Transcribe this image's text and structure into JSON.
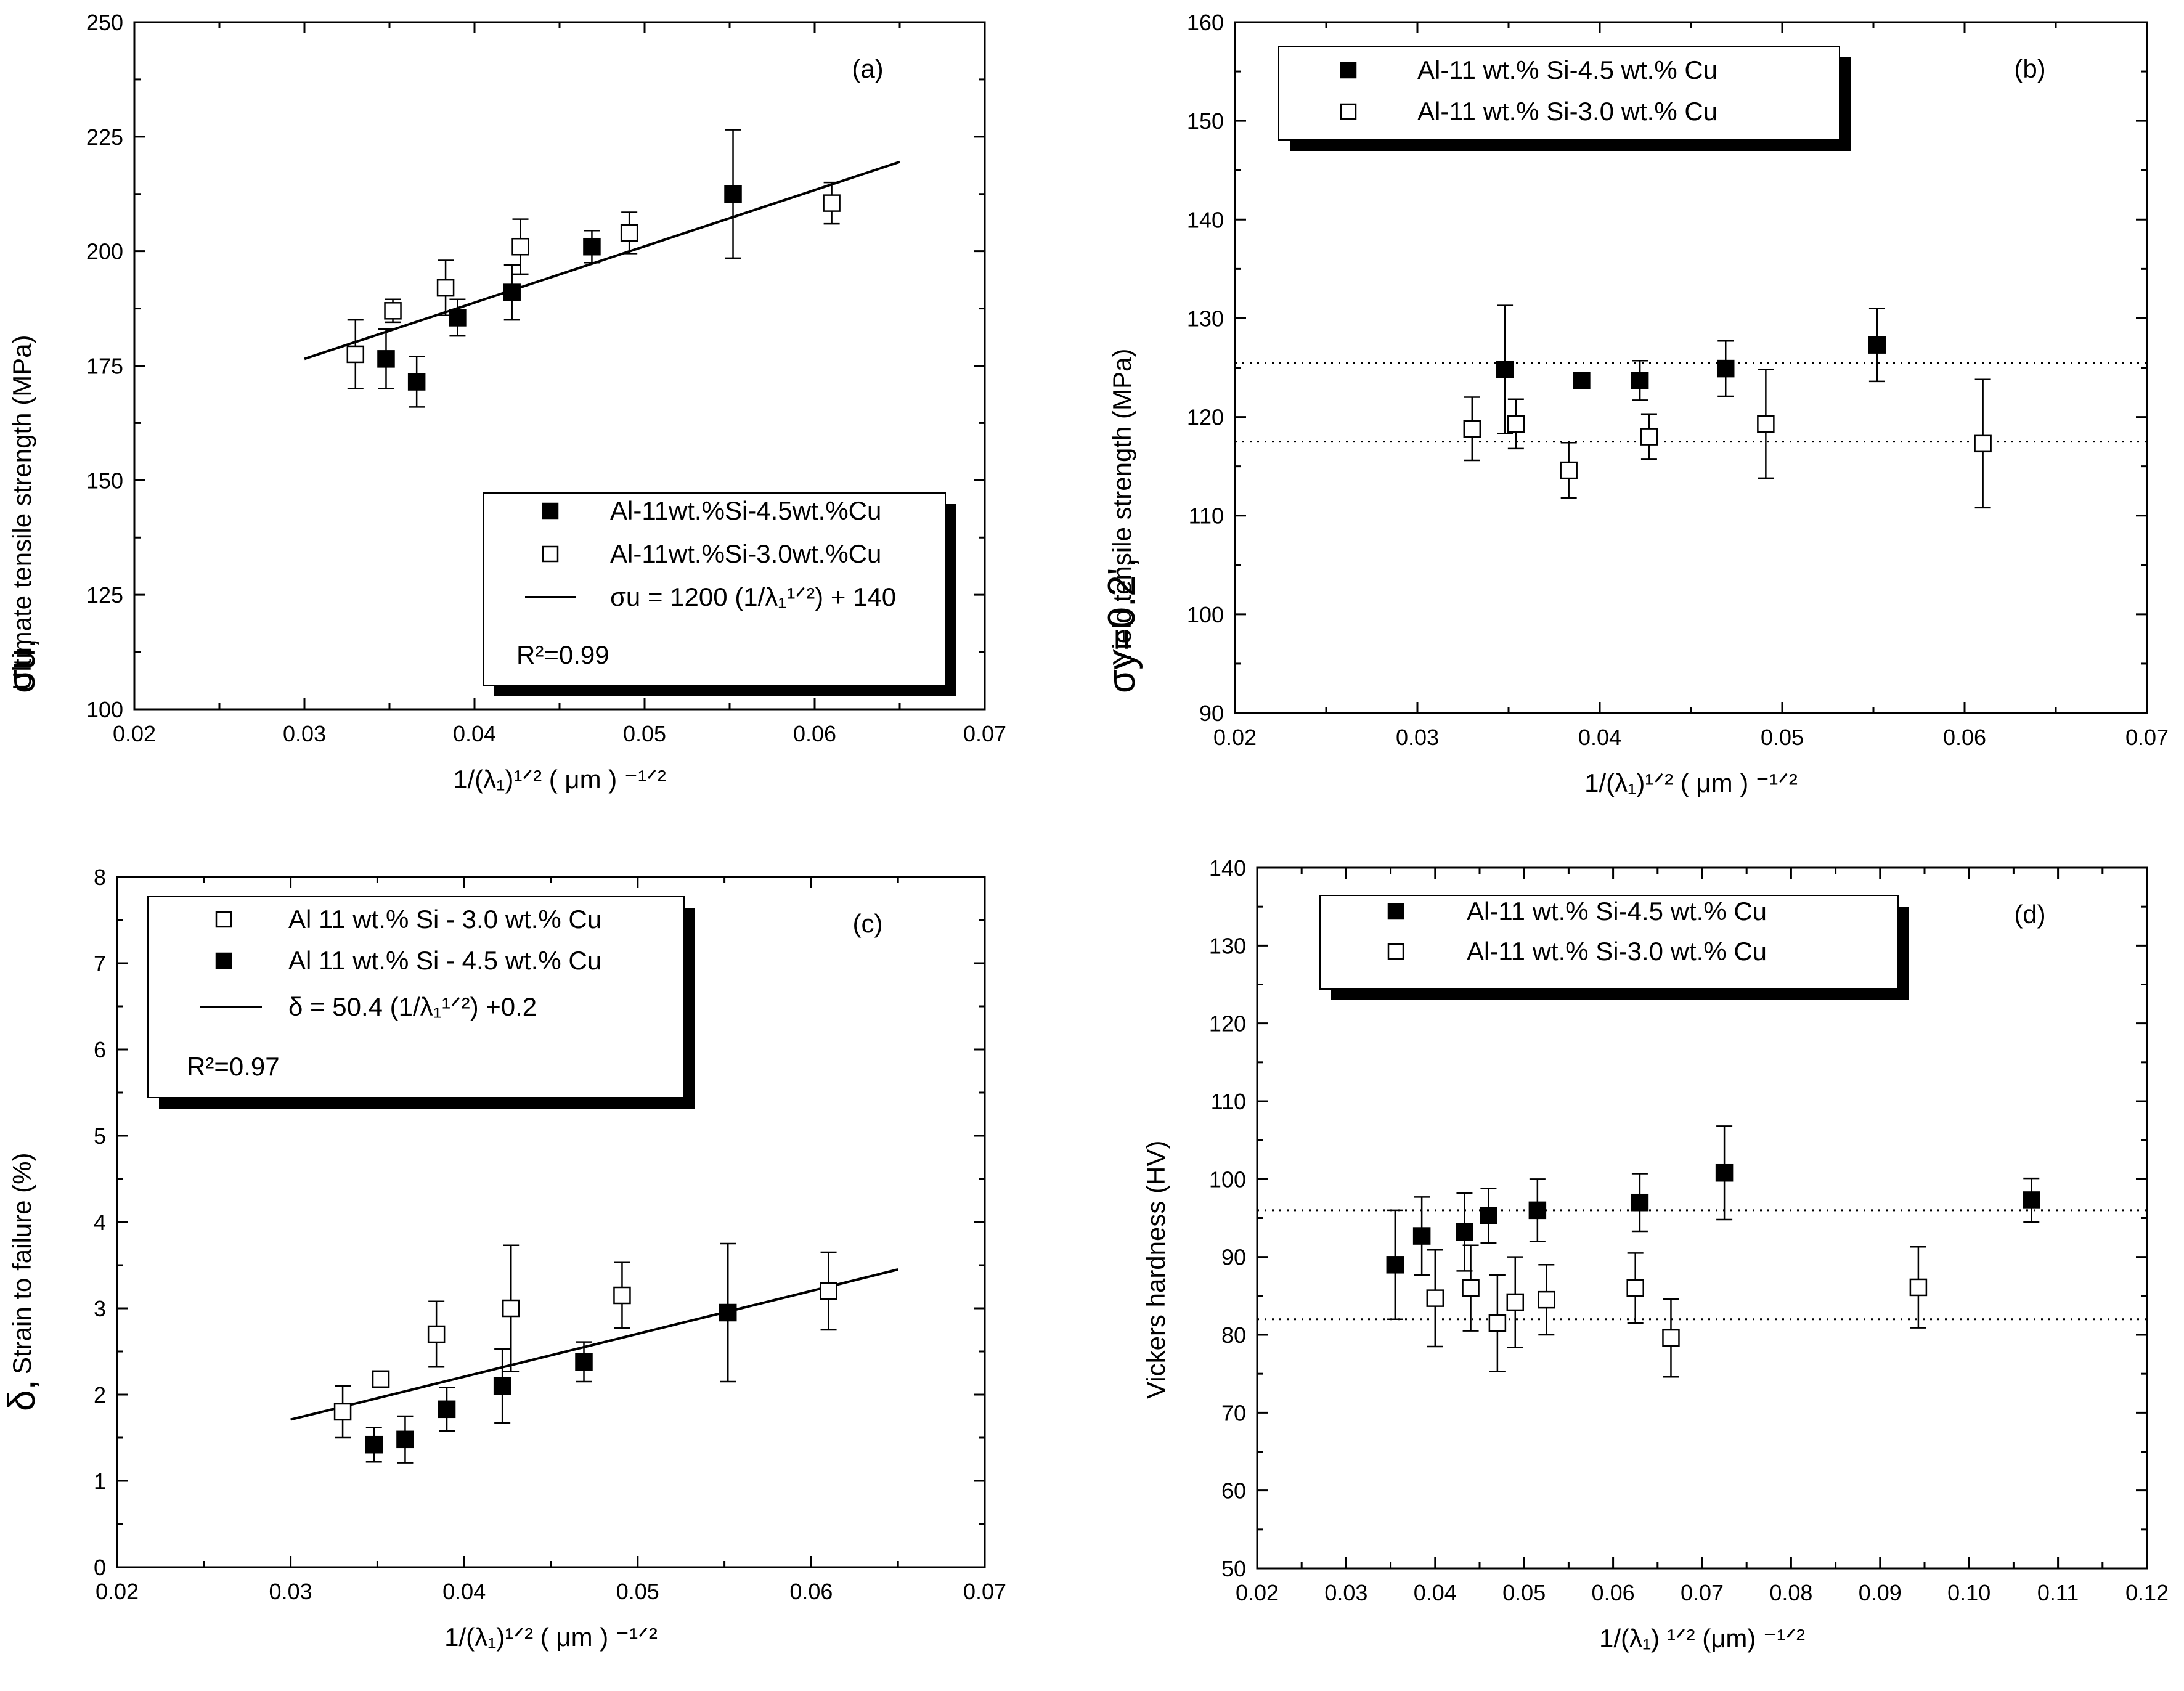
{
  "chart_data": [
    {
      "id": "a",
      "type": "scatter",
      "panel_label": "(a)",
      "xlim": [
        0.02,
        0.07
      ],
      "ylim": [
        100,
        250
      ],
      "xticks": [
        0.02,
        0.03,
        0.04,
        0.05,
        0.06,
        0.07
      ],
      "xtick_labels": [
        "0.02",
        "0.03",
        "0.04",
        "0.05",
        "0.06",
        "0.07"
      ],
      "yticks": [
        100,
        125,
        150,
        175,
        200,
        225,
        250
      ],
      "ytick_labels": [
        "100",
        "125",
        "150",
        "175",
        "200",
        "225",
        "250"
      ],
      "xlabel": "1/(λ₁)¹ᐟ² ( μm ) ⁻¹ᐟ²",
      "ylabel_symbol": "σu,",
      "ylabel": "Ultimate tensile strength (MPa)",
      "series": [
        {
          "name": "Al-11wt.%Si-4.5wt.%Cu",
          "marker": "filled-square",
          "points": [
            {
              "x": 0.0348,
              "y": 176.5,
              "err": 6.5
            },
            {
              "x": 0.0366,
              "y": 171.5,
              "err": 5.5
            },
            {
              "x": 0.039,
              "y": 185.5,
              "err": 4.0
            },
            {
              "x": 0.0422,
              "y": 191.0,
              "err": 6.0
            },
            {
              "x": 0.0469,
              "y": 201.0,
              "err": 3.5
            },
            {
              "x": 0.0552,
              "y": 212.5,
              "err": 14.0
            }
          ]
        },
        {
          "name": "Al-11wt.%Si-3.0wt.%Cu",
          "marker": "open-square",
          "points": [
            {
              "x": 0.033,
              "y": 177.5,
              "err": 7.5
            },
            {
              "x": 0.0352,
              "y": 187.0,
              "err": 2.5
            },
            {
              "x": 0.0383,
              "y": 192.0,
              "err": 6.0
            },
            {
              "x": 0.0427,
              "y": 201.0,
              "err": 6.0
            },
            {
              "x": 0.0491,
              "y": 204.0,
              "err": 4.5
            },
            {
              "x": 0.061,
              "y": 210.5,
              "err": 4.5
            }
          ]
        }
      ],
      "fit_line": {
        "legend": "σu = 1200 (1/λ₁¹ᐟ²) + 140",
        "x": [
          0.03,
          0.065
        ],
        "y": [
          176.5,
          219.5
        ]
      },
      "annotation": "R²=0.99",
      "legend_position": "bottom-right"
    },
    {
      "id": "b",
      "type": "scatter",
      "panel_label": "(b)",
      "xlim": [
        0.02,
        0.07
      ],
      "ylim": [
        90,
        160
      ],
      "xticks": [
        0.02,
        0.03,
        0.04,
        0.05,
        0.06,
        0.07
      ],
      "xtick_labels": [
        "0.02",
        "0.03",
        "0.04",
        "0.05",
        "0.06",
        "0.07"
      ],
      "yticks": [
        90,
        100,
        110,
        120,
        130,
        140,
        150,
        160
      ],
      "ytick_labels": [
        "90",
        "100",
        "110",
        "120",
        "130",
        "140",
        "150",
        "160"
      ],
      "xlabel": "1/(λ₁)¹ᐟ² ( μm ) ⁻¹ᐟ²",
      "ylabel_symbol": "σy=0.2',",
      "ylabel": "Yield tensile strength (MPa)",
      "series": [
        {
          "name": "Al-11 wt.% Si-4.5 wt.% Cu",
          "marker": "filled-square",
          "points": [
            {
              "x": 0.0348,
              "y": 124.8,
              "err": 6.5
            },
            {
              "x": 0.039,
              "y": 123.7,
              "err": 0
            },
            {
              "x": 0.0422,
              "y": 123.7,
              "err": 2.0
            },
            {
              "x": 0.0469,
              "y": 124.9,
              "err": 2.8
            },
            {
              "x": 0.0552,
              "y": 127.3,
              "err": 3.7
            }
          ]
        },
        {
          "name": "Al-11 wt.% Si-3.0 wt.% Cu",
          "marker": "open-square",
          "points": [
            {
              "x": 0.033,
              "y": 118.8,
              "err": 3.2
            },
            {
              "x": 0.0354,
              "y": 119.3,
              "err": 2.5
            },
            {
              "x": 0.0383,
              "y": 114.6,
              "err": 2.8
            },
            {
              "x": 0.0427,
              "y": 118.0,
              "err": 2.3
            },
            {
              "x": 0.0491,
              "y": 119.3,
              "err": 5.5
            },
            {
              "x": 0.061,
              "y": 117.3,
              "err": 6.5
            }
          ]
        }
      ],
      "reference_lines": [
        125.5,
        117.5
      ],
      "legend_position": "top-left"
    },
    {
      "id": "c",
      "type": "scatter",
      "panel_label": "(c)",
      "xlim": [
        0.02,
        0.07
      ],
      "ylim": [
        0,
        8
      ],
      "xticks": [
        0.02,
        0.03,
        0.04,
        0.05,
        0.06,
        0.07
      ],
      "xtick_labels": [
        "0.02",
        "0.03",
        "0.04",
        "0.05",
        "0.06",
        "0.07"
      ],
      "yticks": [
        0,
        1,
        2,
        3,
        4,
        5,
        6,
        7,
        8
      ],
      "ytick_labels": [
        "0",
        "1",
        "2",
        "3",
        "4",
        "5",
        "6",
        "7",
        "8"
      ],
      "xlabel": "1/(λ₁)¹ᐟ² ( μm ) ⁻¹ᐟ²",
      "ylabel_symbol": "δ,",
      "ylabel": "Strain to failure (%)",
      "series": [
        {
          "name": "Al 11 wt.% Si - 3.0 wt.% Cu",
          "marker": "open-square",
          "points": [
            {
              "x": 0.033,
              "y": 1.8,
              "err": 0.3
            },
            {
              "x": 0.0352,
              "y": 2.18,
              "err": 0.05
            },
            {
              "x": 0.0384,
              "y": 2.7,
              "err": 0.38
            },
            {
              "x": 0.0427,
              "y": 3.0,
              "err": 0.73
            },
            {
              "x": 0.0491,
              "y": 3.15,
              "err": 0.38
            },
            {
              "x": 0.061,
              "y": 3.2,
              "err": 0.45
            }
          ]
        },
        {
          "name": "Al 11 wt.% Si - 4.5 wt.% Cu",
          "marker": "filled-square",
          "points": [
            {
              "x": 0.0348,
              "y": 1.42,
              "err": 0.2
            },
            {
              "x": 0.0366,
              "y": 1.48,
              "err": 0.27
            },
            {
              "x": 0.039,
              "y": 1.83,
              "err": 0.25
            },
            {
              "x": 0.0422,
              "y": 2.1,
              "err": 0.43
            },
            {
              "x": 0.0469,
              "y": 2.38,
              "err": 0.23
            },
            {
              "x": 0.0552,
              "y": 2.95,
              "err": 0.8
            }
          ]
        }
      ],
      "fit_line": {
        "legend": "δ = 50.4 (1/λ₁¹ᐟ²) +0.2",
        "x": [
          0.03,
          0.065
        ],
        "y": [
          1.71,
          3.45
        ]
      },
      "annotation": "R²=0.97",
      "legend_position": "top-left"
    },
    {
      "id": "d",
      "type": "scatter",
      "panel_label": "(d)",
      "xlim": [
        0.02,
        0.12
      ],
      "ylim": [
        50,
        140
      ],
      "xticks": [
        0.02,
        0.03,
        0.04,
        0.05,
        0.06,
        0.07,
        0.08,
        0.09,
        0.1,
        0.11,
        0.12
      ],
      "xtick_labels": [
        "0.02",
        "0.03",
        "0.04",
        "0.05",
        "0.06",
        "0.07",
        "0.08",
        "0.09",
        "0.10",
        "0.11",
        "0.12"
      ],
      "yticks": [
        50,
        60,
        70,
        80,
        90,
        100,
        110,
        120,
        130,
        140
      ],
      "ytick_labels": [
        "50",
        "60",
        "70",
        "80",
        "90",
        "100",
        "110",
        "120",
        "130",
        "140"
      ],
      "xlabel": "1/(λ₁) ¹ᐟ² (μm) ⁻¹ᐟ²",
      "ylabel": "Vickers hardness (HV)",
      "series": [
        {
          "name": "Al-11 wt.% Si-4.5 wt.% Cu",
          "marker": "filled-square",
          "points": [
            {
              "x": 0.0355,
              "y": 89,
              "err": 7
            },
            {
              "x": 0.0385,
              "y": 92.7,
              "err": 5
            },
            {
              "x": 0.0433,
              "y": 93.2,
              "err": 5
            },
            {
              "x": 0.046,
              "y": 95.3,
              "err": 3.5
            },
            {
              "x": 0.0515,
              "y": 96,
              "err": 4
            },
            {
              "x": 0.063,
              "y": 97,
              "err": 3.7
            },
            {
              "x": 0.0725,
              "y": 100.8,
              "err": 6
            },
            {
              "x": 0.107,
              "y": 97.3,
              "err": 2.8
            }
          ]
        },
        {
          "name": "Al-11 wt.% Si-3.0 wt.% Cu",
          "marker": "open-square",
          "points": [
            {
              "x": 0.04,
              "y": 84.7,
              "err": 6.2
            },
            {
              "x": 0.044,
              "y": 86,
              "err": 5.5
            },
            {
              "x": 0.047,
              "y": 81.5,
              "err": 6.2
            },
            {
              "x": 0.049,
              "y": 84.2,
              "err": 5.8
            },
            {
              "x": 0.0525,
              "y": 84.5,
              "err": 4.5
            },
            {
              "x": 0.0625,
              "y": 86,
              "err": 4.5
            },
            {
              "x": 0.0665,
              "y": 79.6,
              "err": 5
            },
            {
              "x": 0.0943,
              "y": 86.1,
              "err": 5.2
            }
          ]
        }
      ],
      "reference_lines": [
        96,
        82
      ],
      "legend_position": "top-center"
    }
  ]
}
